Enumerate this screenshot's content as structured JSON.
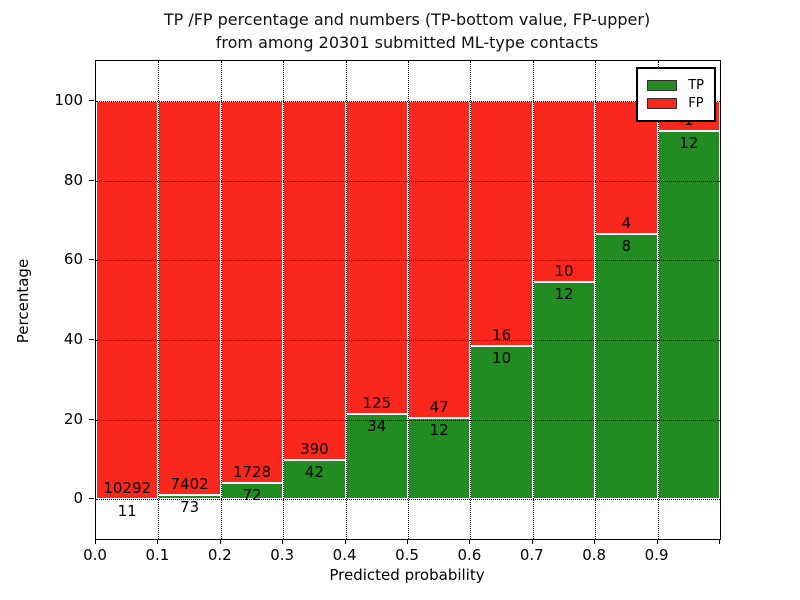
{
  "figure": {
    "title_line1": "TP /FP percentage and numbers (TP-bottom value, FP-upper)",
    "title_line2": "from among 20301 submitted ML-type contacts"
  },
  "chart_data": {
    "type": "bar",
    "variant": "stacked-percentage",
    "title": "TP /FP percentage and numbers (TP-bottom value, FP-upper) from among 20301 submitted ML-type contacts",
    "xlabel": "Predicted probability",
    "ylabel": "Percentage",
    "total_submitted": 20301,
    "xlim": [
      0.0,
      1.0
    ],
    "ylim": [
      -10,
      110
    ],
    "grid": "dotted",
    "x_tick_labels": [
      "0.0",
      "0.1",
      "0.2",
      "0.3",
      "0.4",
      "0.5",
      "0.6",
      "0.7",
      "0.8",
      "0.9"
    ],
    "y_tick_values": [
      0,
      20,
      40,
      60,
      80,
      100
    ],
    "bin_edges": [
      0.0,
      0.1,
      0.2,
      0.3,
      0.4,
      0.5,
      0.6,
      0.7,
      0.8,
      0.9,
      1.0
    ],
    "series": [
      {
        "name": "TP",
        "color": "#228b22",
        "counts": [
          11,
          73,
          72,
          42,
          34,
          12,
          10,
          12,
          8,
          12
        ]
      },
      {
        "name": "FP",
        "color": "#fa281c",
        "counts": [
          10292,
          7402,
          1728,
          390,
          125,
          47,
          16,
          10,
          4,
          1
        ]
      }
    ],
    "tp_percent": [
      0.11,
      0.98,
      4.0,
      9.72,
      21.38,
      20.34,
      38.46,
      54.55,
      66.67,
      92.31
    ],
    "legend": {
      "position": "upper right",
      "entries": [
        {
          "label": "TP",
          "color": "#228b22"
        },
        {
          "label": "FP",
          "color": "#fa281c"
        }
      ]
    }
  }
}
